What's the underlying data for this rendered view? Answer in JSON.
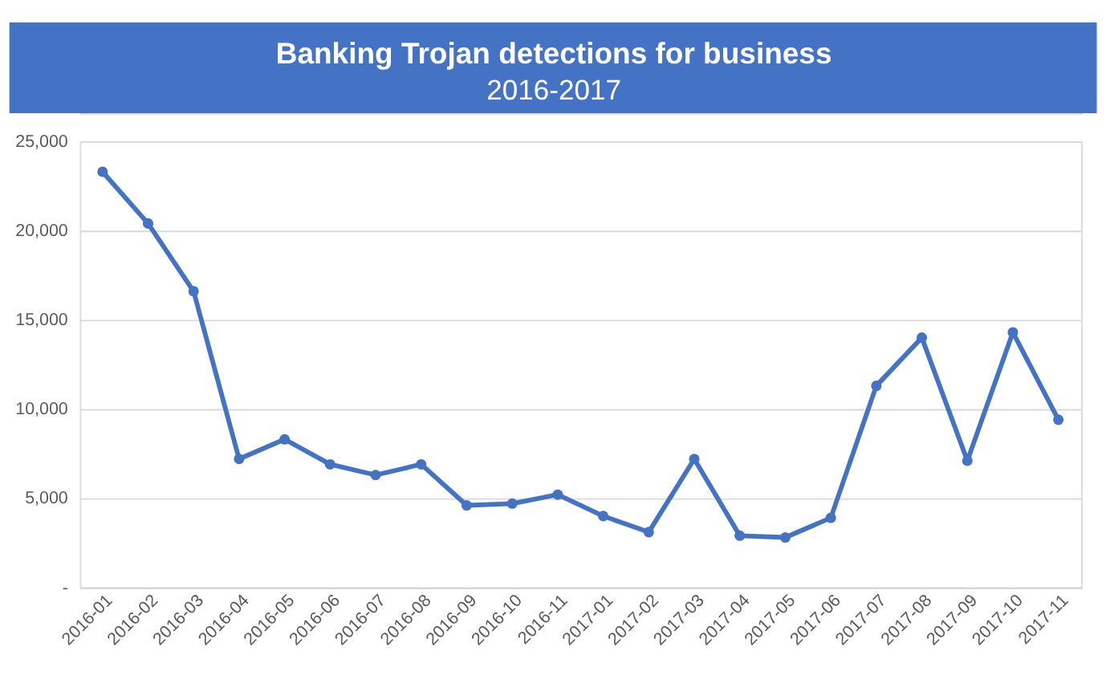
{
  "chart_data": {
    "type": "line",
    "title": "Banking Trojan detections for business",
    "subtitle": "2016-2017",
    "categories": [
      "2016-01",
      "2016-02",
      "2016-03",
      "2016-04",
      "2016-05",
      "2016-06",
      "2016-07",
      "2016-08",
      "2016-09",
      "2016-10",
      "2016-11",
      "2017-01",
      "2017-02",
      "2017-03",
      "2017-04",
      "2017-05",
      "2017-06",
      "2017-07",
      "2017-08",
      "2017-09",
      "2017-10",
      "2017-11"
    ],
    "series": [
      {
        "color": "#4472c4",
        "values": [
          23300,
          20400,
          16600,
          7200,
          8300,
          6900,
          6300,
          6900,
          4600,
          4700,
          5200,
          4000,
          3100,
          7200,
          2900,
          2800,
          3900,
          11300,
          14000,
          7100,
          14300,
          9400
        ]
      }
    ],
    "ylim": [
      0,
      25000
    ],
    "yticks": [
      {
        "value": 0,
        "label": "-"
      },
      {
        "value": 5000,
        "label": "5,000"
      },
      {
        "value": 10000,
        "label": "10,000"
      },
      {
        "value": 15000,
        "label": "15,000"
      },
      {
        "value": 20000,
        "label": "20,000"
      },
      {
        "value": 25000,
        "label": "25,000"
      }
    ],
    "grid": "y",
    "marker": "circle",
    "line_style": "solid",
    "legend": false
  }
}
